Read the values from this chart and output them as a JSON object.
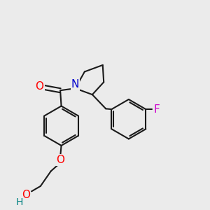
{
  "bg_color": "#ebebeb",
  "bond_color": "#1a1a1a",
  "bond_width": 1.5,
  "atom_colors": {
    "O": "#ff0000",
    "N": "#0000cc",
    "F": "#cc00cc",
    "H": "#008080"
  },
  "font_size": 10
}
